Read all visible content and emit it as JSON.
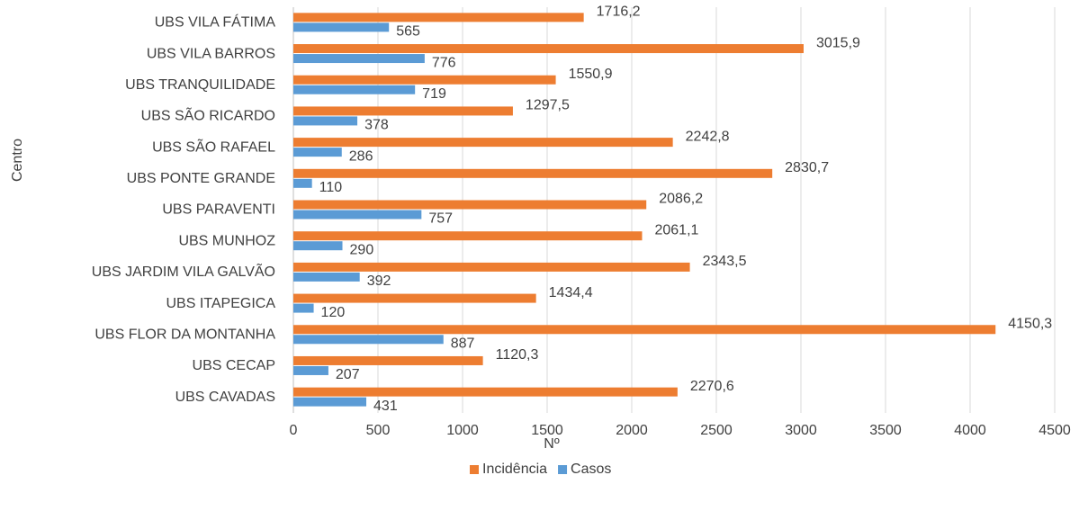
{
  "chart_data": {
    "type": "hbar",
    "y_label": "Centro",
    "x_label": "Nº",
    "categories": [
      "UBS VILA FÁTIMA",
      "UBS VILA BARROS",
      "UBS TRANQUILIDADE",
      "UBS SÃO RICARDO",
      "UBS SÃO RAFAEL",
      "UBS PONTE GRANDE",
      "UBS PARAVENTI",
      "UBS MUNHOZ",
      "UBS JARDIM VILA GALVÃO",
      "UBS ITAPEGICA",
      "UBS FLOR DA MONTANHA",
      "UBS CECAP",
      "UBS CAVADAS"
    ],
    "series": [
      {
        "name": "Incidência",
        "color": "#ED7D31",
        "values": [
          1716.2,
          3015.9,
          1550.9,
          1297.5,
          2242.8,
          2830.7,
          2086.2,
          2061.1,
          2343.5,
          1434.4,
          4150.3,
          1120.3,
          2270.6
        ],
        "value_labels": [
          "1716,2",
          "3015,9",
          "1550,9",
          "1297,5",
          "2242,8",
          "2830,7",
          "2086,2",
          "2061,1",
          "2343,5",
          "1434,4",
          "4150,3",
          "1120,3",
          "2270,6"
        ]
      },
      {
        "name": "Casos",
        "color": "#5B9BD5",
        "values": [
          565,
          776,
          719,
          378,
          286,
          110,
          757,
          290,
          392,
          120,
          887,
          207,
          431
        ]
      }
    ],
    "xlim": [
      0,
      4500
    ],
    "xticks": [
      0,
      500,
      1000,
      1500,
      2000,
      2500,
      3000,
      3500,
      4000,
      4500
    ],
    "grid": true,
    "legend": "bottom"
  }
}
